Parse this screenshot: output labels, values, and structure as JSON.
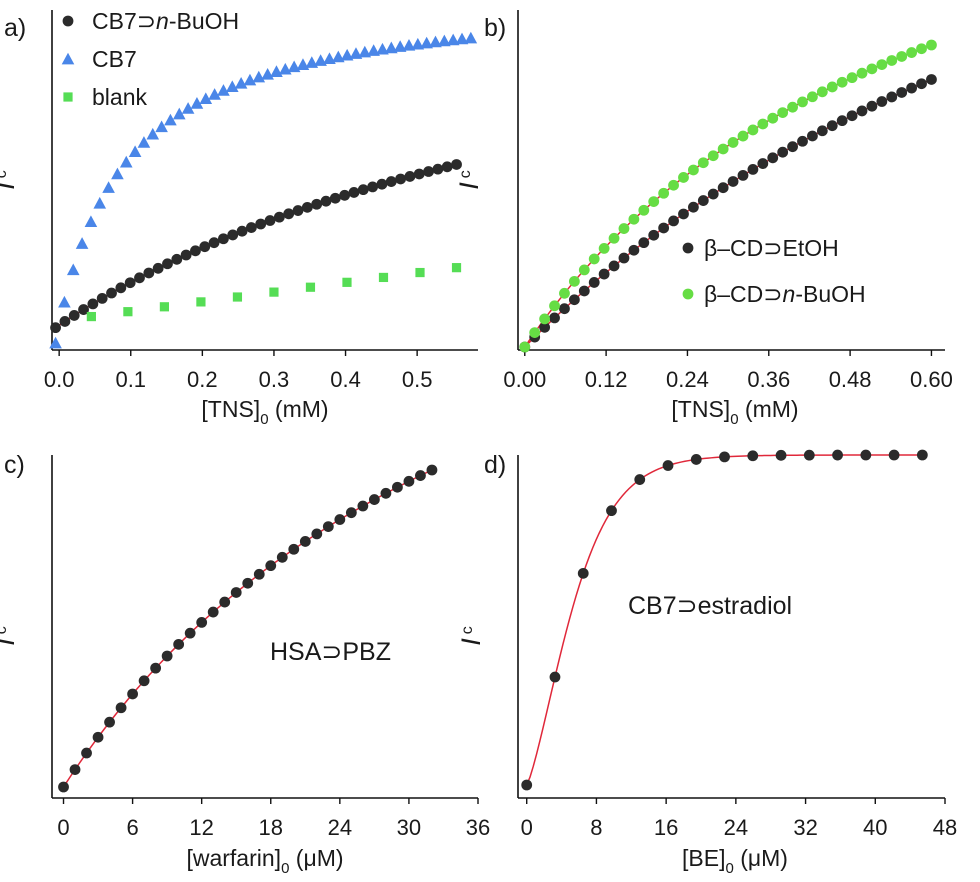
{
  "chart_data": [
    {
      "panel": "a)",
      "type": "scatter",
      "xlabel_main": "[TNS]",
      "xlabel_sub": "0",
      "xlabel_unit": " (mM)",
      "ylabel": "I",
      "ylabel_sub": "c",
      "xlim": [
        -0.01,
        0.585
      ],
      "ylim": [
        0,
        1.0
      ],
      "xticks": [
        0.0,
        0.1,
        0.2,
        0.3,
        0.4,
        0.5
      ],
      "xtick_labels": [
        "0.0",
        "0.1",
        "0.2",
        "0.3",
        "0.4",
        "0.5"
      ],
      "legend_position": "top-left",
      "series": [
        {
          "name": "CB7⊃",
          "name_italic": "n",
          "name_tail": "-BuOH",
          "marker": "circle",
          "color": "#2b2b2b",
          "fit": true,
          "model": "sat",
          "x_start": -0.005,
          "x_end": 0.555,
          "n": 44,
          "max": 1.4,
          "k": 0.85,
          "offset": 0.02
        },
        {
          "name": "CB7",
          "marker": "triangle",
          "color": "#4a86e8",
          "fit": false,
          "model": "sat",
          "x_start": -0.005,
          "x_end": 0.575,
          "n": 48,
          "max": 1.16,
          "k": 0.1,
          "offset": 0.02
        },
        {
          "name": "blank",
          "marker": "square",
          "color": "#55dd55",
          "fit": false,
          "model": "lin",
          "x_start": 0.045,
          "x_end": 0.555,
          "n": 11,
          "a": 0.035,
          "b": 0.33
        }
      ]
    },
    {
      "panel": "b)",
      "type": "scatter",
      "xlabel_main": "[TNS]",
      "xlabel_sub": "0",
      "xlabel_unit": " (mM)",
      "ylabel": "I",
      "ylabel_sub": "c",
      "xlim": [
        -0.01,
        0.62
      ],
      "ylim": [
        0,
        1.0
      ],
      "xticks": [
        0.0,
        0.12,
        0.24,
        0.36,
        0.48,
        0.6
      ],
      "xtick_labels": [
        "0.00",
        "0.12",
        "0.24",
        "0.36",
        "0.48",
        "0.60"
      ],
      "legend_position": "center-right",
      "series": [
        {
          "name": "β–CD⊃EtOH",
          "marker": "circle",
          "color": "#2b2b2b",
          "fit": true,
          "model": "sat",
          "x_start": 0.0,
          "x_end": 0.6,
          "n": 42,
          "max": 2.51,
          "k": 1.1,
          "offset": 0.0
        },
        {
          "name": "β–CD⊃",
          "name_italic": "n",
          "name_tail": "-BuOH",
          "marker": "circle",
          "color": "#66dd44",
          "fit": true,
          "model": "sat",
          "x_start": 0.0,
          "x_end": 0.6,
          "n": 42,
          "max": 2.0,
          "k": 0.6,
          "offset": 0.0
        }
      ]
    },
    {
      "panel": "c)",
      "type": "scatter",
      "xlabel_main": "[warfarin]",
      "xlabel_sub": "0",
      "xlabel_unit": " (μM)",
      "ylabel": "I",
      "ylabel_sub": "c",
      "xlim": [
        -1,
        36
      ],
      "ylim": [
        0,
        1.0
      ],
      "xticks": [
        0,
        6,
        12,
        18,
        24,
        30,
        36
      ],
      "xtick_labels": [
        "0",
        "6",
        "12",
        "18",
        "24",
        "30",
        "36"
      ],
      "annotation": "HSA⊃PBZ",
      "series": [
        {
          "name": "HSA⊃PBZ",
          "marker": "circle",
          "color": "#2b2b2b",
          "fit": true,
          "model": "sat",
          "x_start": 0,
          "x_end": 32,
          "n": 33,
          "max": 2.7,
          "k": 40,
          "offset": 0.0
        }
      ]
    },
    {
      "panel": "d)",
      "type": "scatter",
      "xlabel_main": "[BE]",
      "xlabel_sub": "0",
      "xlabel_unit": " (μM)",
      "ylabel": "I",
      "ylabel_sub": "c",
      "xlim": [
        -1,
        48
      ],
      "ylim": [
        0,
        1.0
      ],
      "xticks": [
        0,
        8,
        16,
        24,
        32,
        40,
        48
      ],
      "xtick_labels": [
        "0",
        "8",
        "16",
        "24",
        "32",
        "40",
        "48"
      ],
      "annotation": "CB7⊃estradiol",
      "series": [
        {
          "name": "CB7⊃estradiol",
          "marker": "circle",
          "color": "#2b2b2b",
          "fit": true,
          "model": "sig",
          "x_start": 0,
          "x_end": 45.4,
          "n": 15,
          "max": 0.9985,
          "c": 0.134,
          "offset": 0.0
        }
      ]
    }
  ],
  "fit_color": "#e0283a"
}
